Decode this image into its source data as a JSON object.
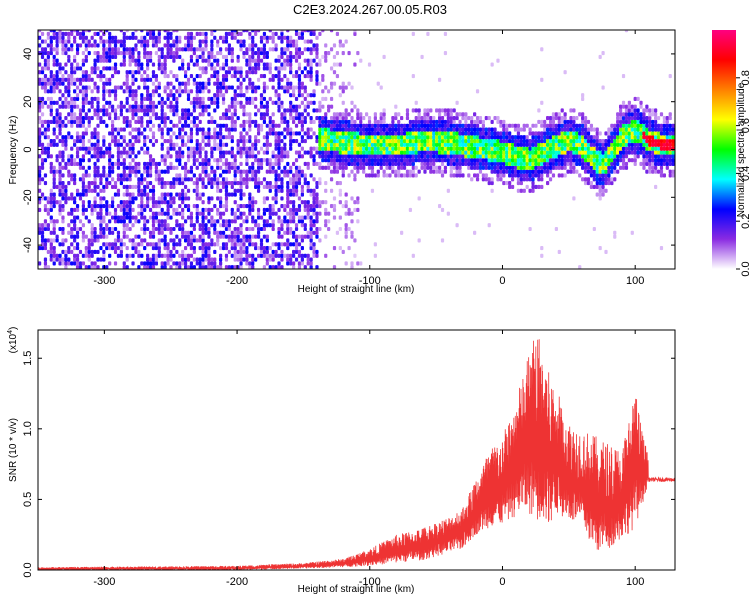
{
  "title": "C2E3.2024.267.00.05.R03",
  "chart_data": [
    {
      "type": "heatmap",
      "xlabel": "Height of straight line (km)",
      "ylabel": "Frequency (Hz)",
      "xlim": [
        -350,
        130
      ],
      "ylim": [
        -50,
        50
      ],
      "x_ticks": [
        -300,
        -200,
        -100,
        0,
        100
      ],
      "x_tick_labels": [
        "-300",
        "-200",
        "-100",
        "0",
        "100"
      ],
      "y_ticks": [
        -40,
        -20,
        0,
        20,
        40
      ],
      "y_tick_labels": [
        "-40",
        "-20",
        "0",
        "20",
        "40"
      ],
      "grid": false,
      "colorbar": {
        "label": "Normalized spectral amplitude",
        "range": [
          0,
          1
        ],
        "ticks": [
          0.0,
          0.2,
          0.4,
          0.6,
          0.8
        ],
        "tick_labels": [
          "0.0",
          "0.2",
          "0.4",
          "0.6",
          "0.8"
        ],
        "colormap": [
          "#ffffff",
          "#8a2be2",
          "#0000ff",
          "#00ffff",
          "#00ff00",
          "#ffff00",
          "#ff8000",
          "#ff0000",
          "#ff0080"
        ]
      },
      "regions": [
        {
          "x_range": [
            -350,
            -140
          ],
          "freq_range": [
            -50,
            50
          ],
          "amplitude": 0.12,
          "description": "broadband noise"
        },
        {
          "x_range": [
            -140,
            -110
          ],
          "freq_range": [
            -50,
            50
          ],
          "amplitude": 0.05
        },
        {
          "x_range": [
            -140,
            130
          ],
          "centerline": "ridge",
          "amplitude": 0.45
        }
      ],
      "ridge_center_x": [
        -140,
        -120,
        -100,
        -80,
        -60,
        -40,
        -20,
        0,
        10,
        20,
        30,
        40,
        50,
        60,
        70,
        75,
        80,
        90,
        100,
        110,
        120,
        130
      ],
      "ridge_center_freq": [
        4,
        2,
        1,
        1,
        3,
        2,
        0,
        -2,
        -4,
        -5,
        -2,
        1,
        3,
        0,
        -6,
        -7,
        -3,
        5,
        7,
        3,
        1,
        1
      ]
    },
    {
      "type": "line",
      "xlabel": "Height of straight line (km)",
      "ylabel": "SNR (10 * v/v)",
      "y_multiplier": "(x10",
      "y_multiplier_exp": "4",
      "y_multiplier_close": ")",
      "xlim": [
        -350,
        130
      ],
      "ylim": [
        0,
        17000
      ],
      "x_ticks": [
        -300,
        -200,
        -100,
        0,
        100
      ],
      "x_tick_labels": [
        "-300",
        "-200",
        "-100",
        "0",
        "100"
      ],
      "y_ticks": [
        0,
        5000,
        10000,
        15000
      ],
      "y_tick_labels": [
        "0.0",
        "0.5",
        "1.0",
        "1.5"
      ],
      "color": "#ee3333",
      "grid": false,
      "envelope_x": [
        -350,
        -200,
        -150,
        -120,
        -100,
        -80,
        -60,
        -40,
        -30,
        -20,
        -10,
        0,
        10,
        20,
        25,
        30,
        35,
        40,
        50,
        60,
        70,
        80,
        90,
        100,
        105,
        110,
        115,
        120,
        130
      ],
      "envelope_low": [
        0,
        0,
        100,
        200,
        300,
        500,
        700,
        1200,
        1500,
        2500,
        3000,
        3200,
        3800,
        4000,
        3500,
        3500,
        3000,
        4000,
        3500,
        3000,
        1200,
        1500,
        2200,
        3000,
        4500,
        6200,
        6200,
        6200,
        6200
      ],
      "envelope_high": [
        200,
        300,
        500,
        800,
        1500,
        2500,
        3000,
        3800,
        4500,
        6500,
        8500,
        9500,
        12000,
        15500,
        17000,
        16000,
        14000,
        13000,
        10500,
        10000,
        9500,
        9000,
        8500,
        13000,
        10000,
        8000,
        6700,
        6600,
        6500
      ],
      "plateau_value": 6400
    }
  ]
}
